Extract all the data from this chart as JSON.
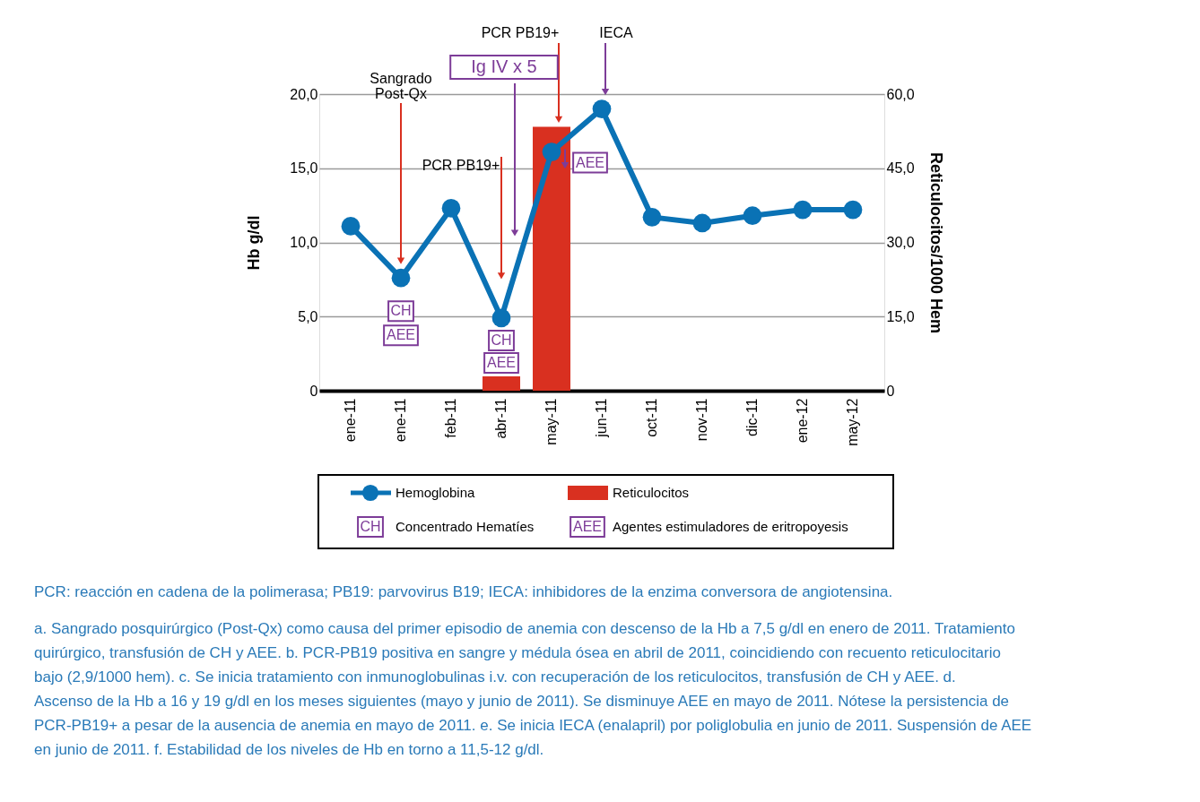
{
  "chart_data": {
    "type": "line",
    "ylabel": "Hb g/dl",
    "y2label": "Reticulocitos/1000 Hem",
    "categories": [
      "ene-11",
      "ene-11",
      "feb-11",
      "abr-11",
      "may-11",
      "jun-11",
      "oct-11",
      "nov-11",
      "dic-11",
      "ene-12",
      "may-12"
    ],
    "series": [
      {
        "name": "Hemoglobina",
        "color": "#0a72b5",
        "values": [
          11.1,
          7.6,
          12.3,
          4.9,
          16.1,
          19.0,
          11.7,
          11.3,
          11.8,
          12.2,
          12.2
        ]
      },
      {
        "name": "Reticulocitos",
        "type": "bar",
        "axis": "y2",
        "color": "#d93020",
        "values": [
          null,
          null,
          null,
          2.9,
          53.4,
          null,
          null,
          null,
          null,
          null,
          null
        ]
      }
    ],
    "ylim": [
      0,
      20
    ],
    "yticks": [
      0,
      {
        "value": 5,
        "label": "5,0"
      },
      {
        "value": 10,
        "label": "10,0"
      },
      {
        "value": 15,
        "label": "15,0"
      },
      {
        "value": 20,
        "label": "20,0"
      }
    ],
    "y2lim": [
      0,
      60
    ],
    "y2ticks": [
      0,
      {
        "value": 15,
        "label": "15,0"
      },
      {
        "value": 30,
        "label": "30,0"
      },
      {
        "value": 45,
        "label": "45,0"
      },
      {
        "value": 60,
        "label": "60,0"
      }
    ],
    "grid": "y",
    "legend": "bottom",
    "marker": "circle",
    "line_style": "solid",
    "annotations": [
      "Sangrado\nPost-Qx",
      "PCR PB19+",
      "PCR PB19+",
      "IECA",
      "Ig IV x 5",
      "CH",
      "AEE",
      "CH",
      "AEE",
      "AEE",
      "Concentrado Hematíes",
      "Agentes estimuladores de eritropoyesis",
      "PCR: reacción en cadena de la polimerasa; PB19: parvovirus B19; IECA: inhibidores de la enzima conversora de angiotensina.",
      "a. Sangrado posquirúrgico (Post-Qx) como causa del primer episodio de anemia con descenso de la Hb a 7,5 g/dl en enero de 2011. Tratamiento quirúrgico, transfusión de CH y AEE. b. PCR-PB19 positiva en sangre y médula ósea en abril de 2011, coincidiendo con recuento reticulocitario bajo (2,9/1000 hem). c. Se inicia tratamiento con inmunoglobulinas i.v. con recuperación de los reticulocitos, transfusión de CH y AEE. d. Ascenso de la Hb a 16 y 19 g/dl en los meses siguientes (mayo y junio de 2011). Se disminuye AEE en mayo de 2011. Nótese la persistencia de PCR-PB19+ a pesar de la ausencia de anemia en mayo de 2011. e. Se inicia IECA (enalapril) por poliglobulia en junio de 2011. Suspensión de AEE en junio de 2011. f. Estabilidad de los niveles de Hb en torno a 11,5-12 g/dl."
    ]
  }
}
